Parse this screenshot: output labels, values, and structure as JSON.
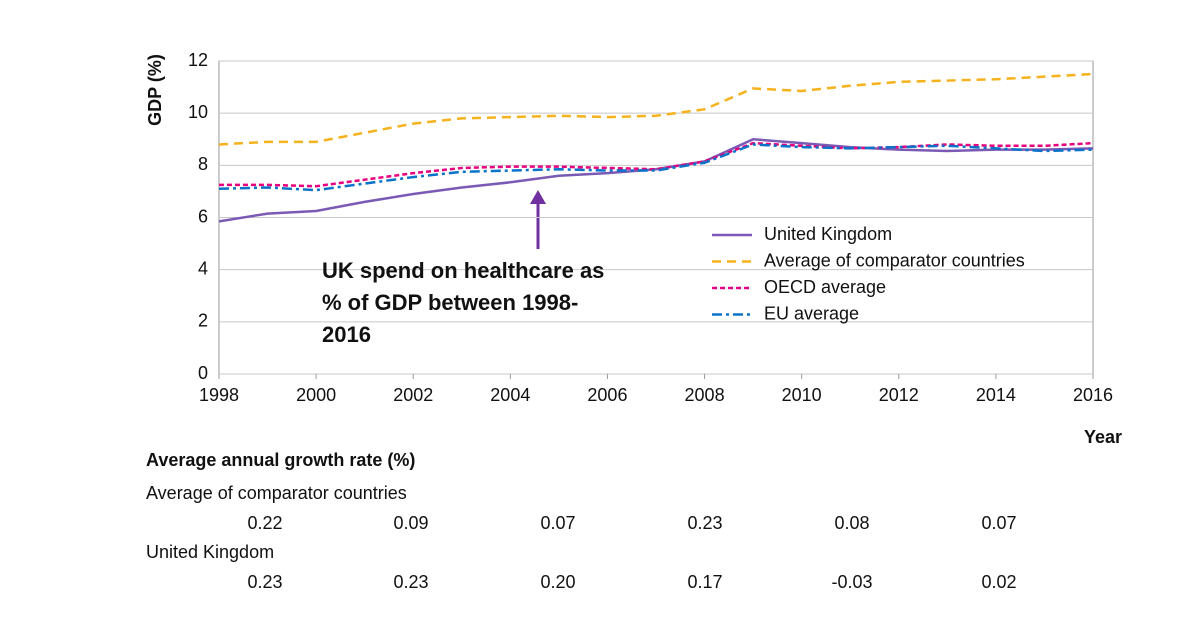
{
  "chart_data": {
    "type": "line",
    "y_label": "GDP (%)",
    "x_label": "Year",
    "x": [
      1998,
      1999,
      2000,
      2001,
      2002,
      2003,
      2004,
      2005,
      2006,
      2007,
      2008,
      2009,
      2010,
      2011,
      2012,
      2013,
      2014,
      2015,
      2016
    ],
    "series": [
      {
        "name": "United Kingdom",
        "color": "#7b5ab5",
        "dash": "solid",
        "values": [
          5.85,
          6.15,
          6.25,
          6.6,
          6.9,
          7.15,
          7.35,
          7.6,
          7.7,
          7.85,
          8.15,
          9.0,
          8.85,
          8.7,
          8.6,
          8.55,
          8.6,
          8.6,
          8.65
        ]
      },
      {
        "name": "Average of comparator countries",
        "color": "#f5b21c",
        "dash": "dashed",
        "values": [
          8.8,
          8.9,
          8.9,
          9.25,
          9.6,
          9.8,
          9.85,
          9.9,
          9.85,
          9.9,
          10.15,
          10.95,
          10.85,
          11.05,
          11.2,
          11.25,
          11.3,
          11.4,
          11.5
        ]
      },
      {
        "name": "OECD average",
        "color": "#e6007e",
        "dash": "dotted",
        "values": [
          7.25,
          7.25,
          7.2,
          7.45,
          7.7,
          7.9,
          7.95,
          7.95,
          7.9,
          7.85,
          8.15,
          8.85,
          8.75,
          8.65,
          8.7,
          8.8,
          8.75,
          8.75,
          8.85
        ]
      },
      {
        "name": "EU average",
        "color": "#0a73c9",
        "dash": "dashdot",
        "values": [
          7.1,
          7.15,
          7.05,
          7.3,
          7.55,
          7.75,
          7.8,
          7.85,
          7.8,
          7.8,
          8.1,
          8.8,
          8.7,
          8.65,
          8.7,
          8.75,
          8.65,
          8.55,
          8.6
        ]
      }
    ],
    "xlim": [
      1998,
      2016
    ],
    "xticks": [
      1998,
      2000,
      2002,
      2004,
      2006,
      2008,
      2010,
      2012,
      2014,
      2016
    ],
    "ylim": [
      0,
      12
    ],
    "yticks": [
      0,
      2,
      4,
      6,
      8,
      10,
      12
    ],
    "grid": true,
    "legend": "center right",
    "annotation": {
      "lines": [
        "UK spend on healthcare as",
        "% of GDP between 1998-",
        "2016"
      ],
      "color": "#7030a0"
    }
  },
  "table": {
    "title": "Average annual growth rate (%)",
    "rows": [
      {
        "name": "Average of comparator countries",
        "values": [
          "0.22",
          "0.09",
          "0.07",
          "0.23",
          "0.08",
          "0.07"
        ]
      },
      {
        "name": "United Kingdom",
        "values": [
          "0.23",
          "0.23",
          "0.20",
          "0.17",
          "-0.03",
          "0.02"
        ]
      }
    ]
  }
}
